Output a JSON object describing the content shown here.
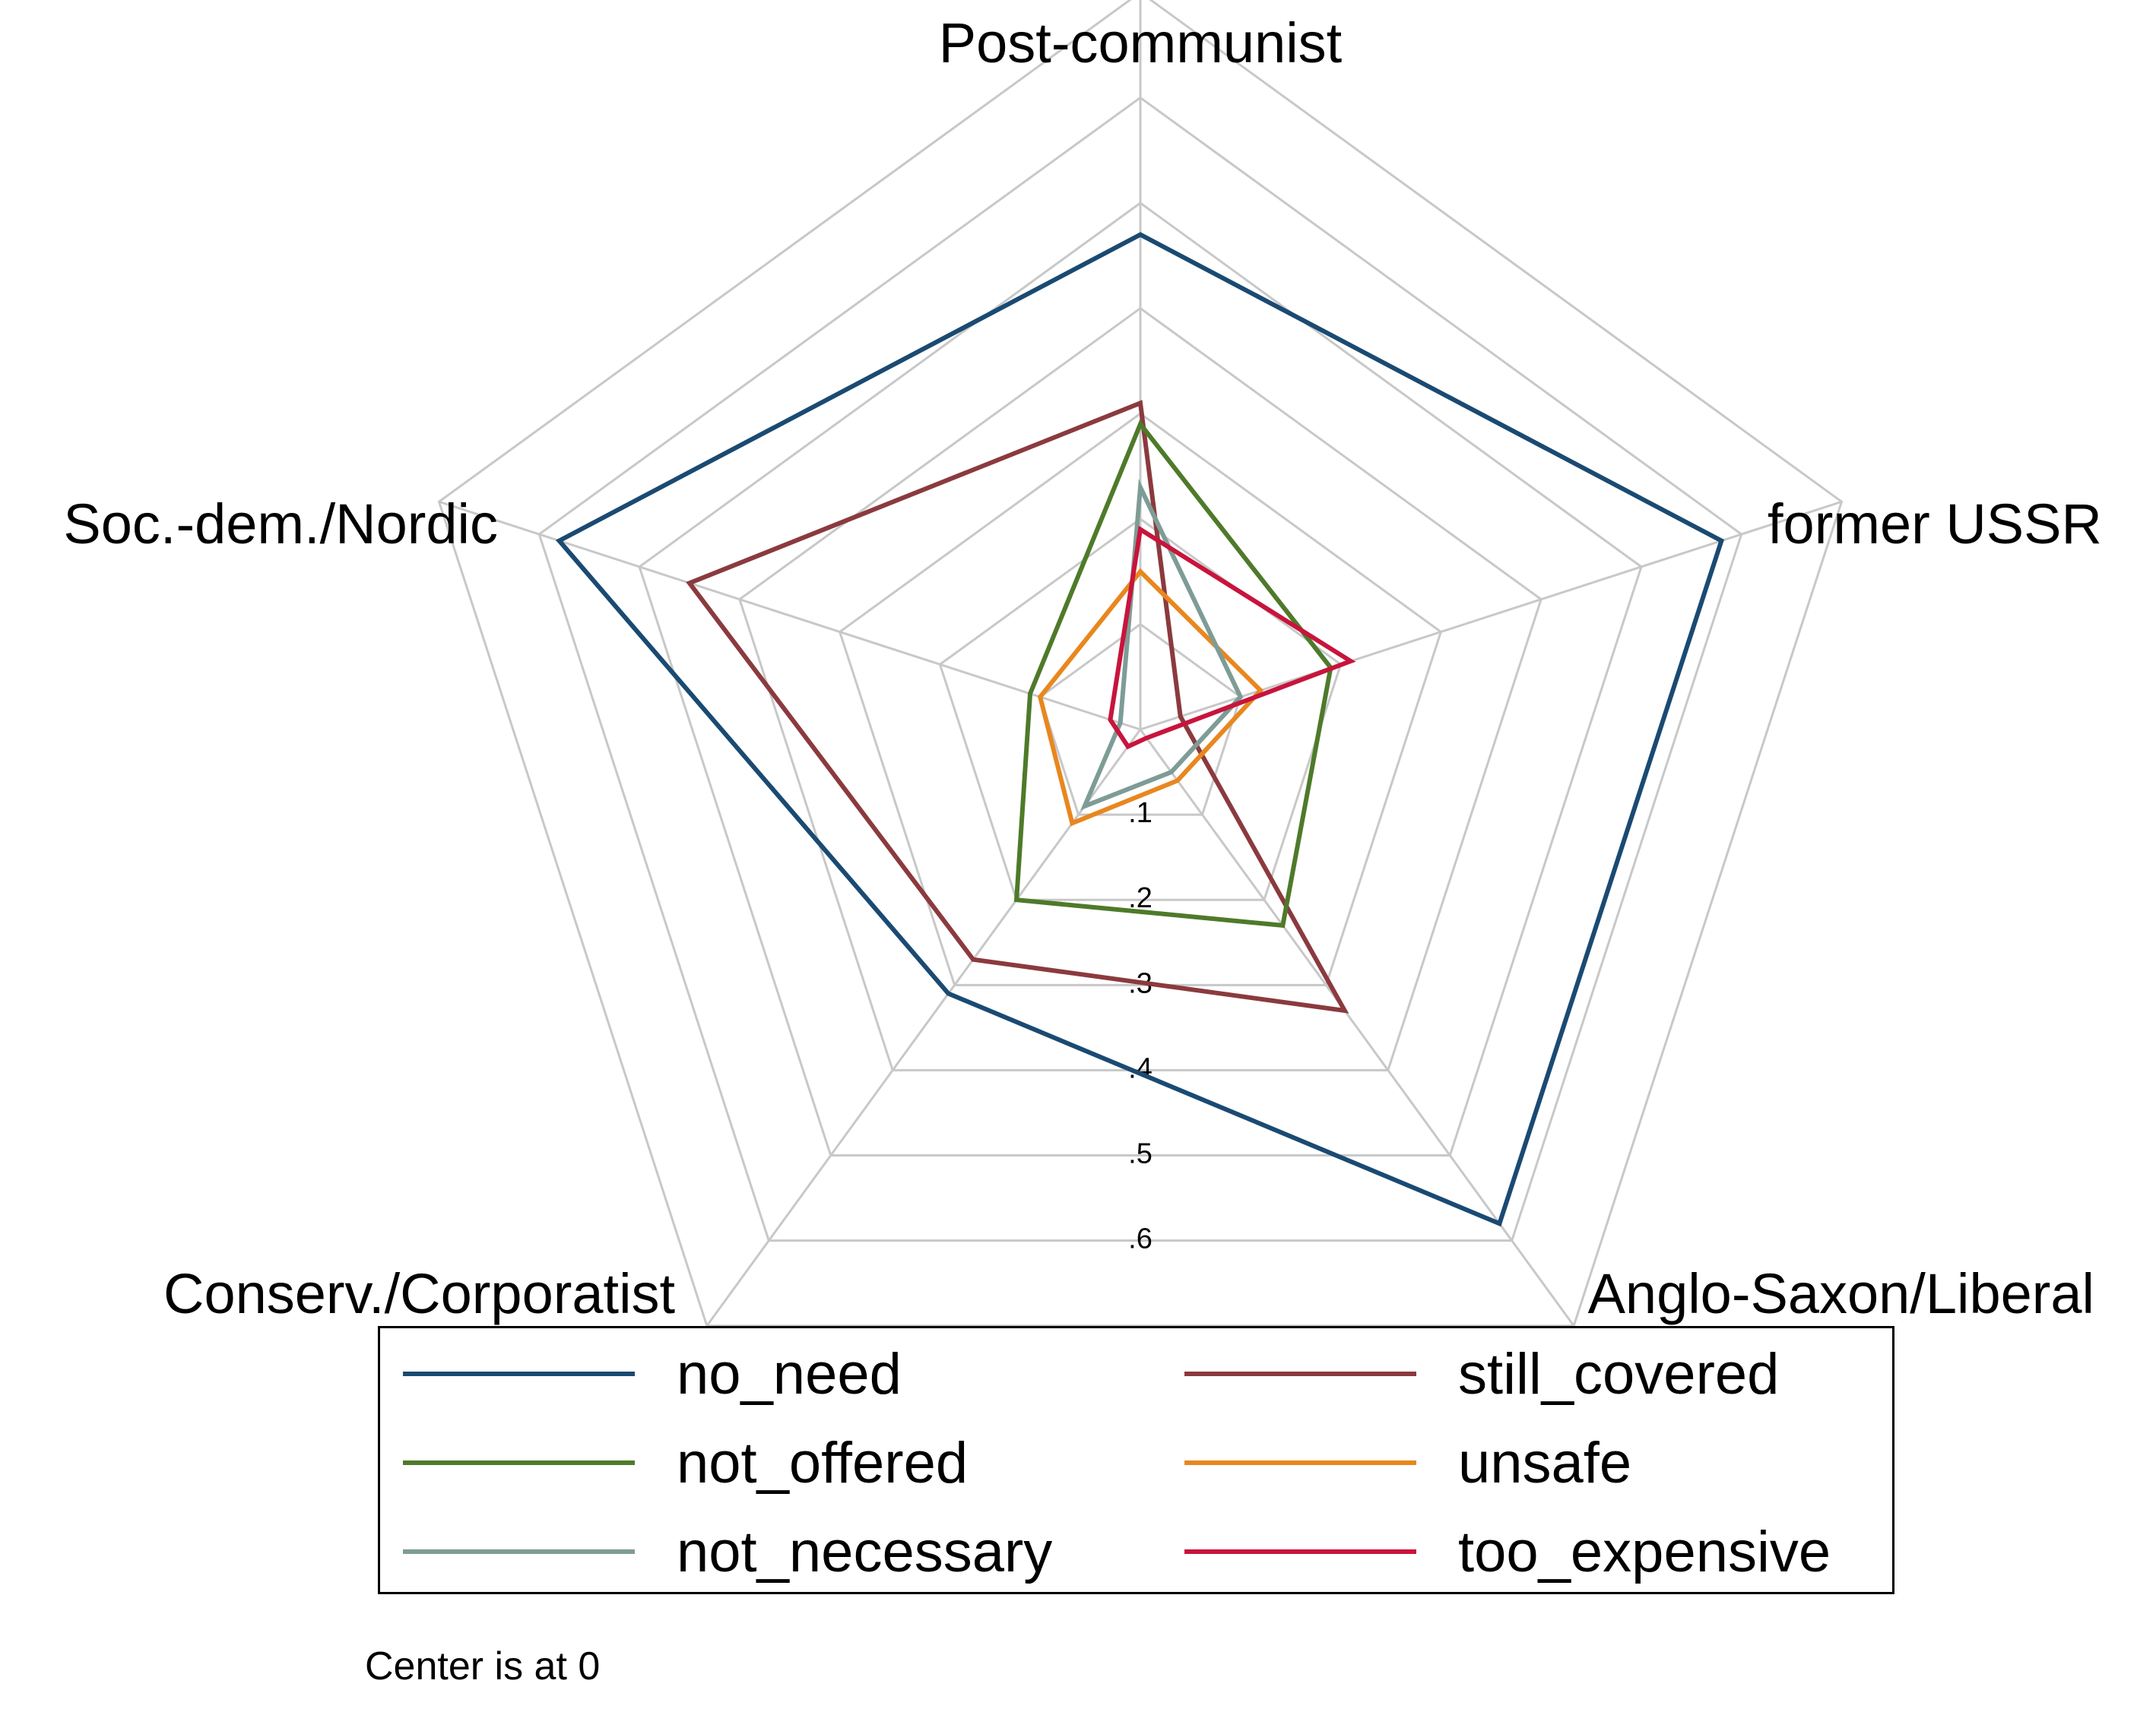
{
  "chart_data": {
    "type": "radar",
    "title": "",
    "categories": [
      "Post-communist",
      "former USSR",
      "Anglo-Saxon/Liberal",
      "Conserv./Corporatist",
      "Soc.-dem./Nordic"
    ],
    "rlim": [
      0,
      0.7
    ],
    "ticks": [
      0.1,
      0.2,
      0.3,
      0.4,
      0.5,
      0.6
    ],
    "tick_labels": [
      ".1",
      ".2",
      ".3",
      ".4",
      ".5",
      ".6"
    ],
    "grid": true,
    "legend_position": "bottom",
    "note": "Center is at 0",
    "series": [
      {
        "name": "no_need",
        "color": "#1a4a72",
        "values": [
          0.47,
          0.58,
          0.58,
          0.31,
          0.58
        ]
      },
      {
        "name": "still_covered",
        "color": "#8b3a3e",
        "values": [
          0.31,
          0.04,
          0.33,
          0.27,
          0.45
        ]
      },
      {
        "name": "not_offered",
        "color": "#4e7a2a",
        "values": [
          0.29,
          0.19,
          0.23,
          0.2,
          0.11
        ]
      },
      {
        "name": "unsafe",
        "color": "#e8871e",
        "values": [
          0.15,
          0.12,
          0.06,
          0.11,
          0.1
        ]
      },
      {
        "name": "not_necessary",
        "color": "#7e9c96",
        "values": [
          0.23,
          0.1,
          0.05,
          0.09,
          0.02
        ]
      },
      {
        "name": "too_expensive",
        "color": "#c8143c",
        "values": [
          0.19,
          0.21,
          0.01,
          0.02,
          0.03
        ]
      }
    ]
  }
}
